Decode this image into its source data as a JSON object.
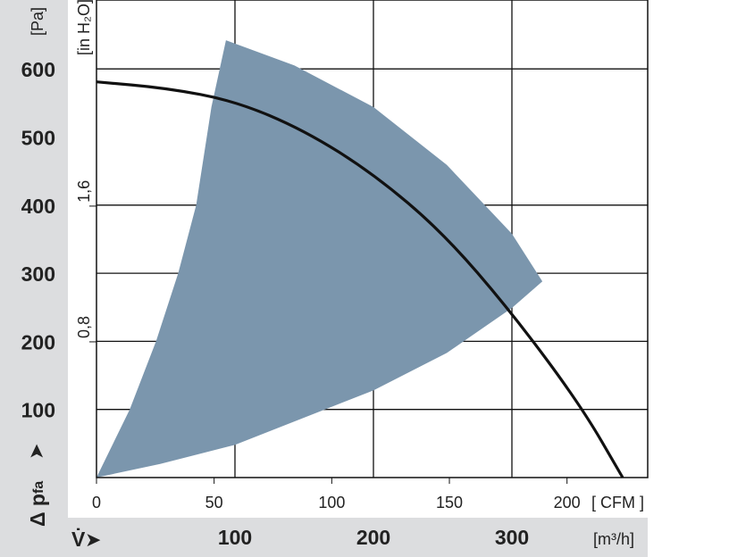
{
  "chart_data": {
    "type": "line",
    "y_unit_left": "[Pa]",
    "y_unit_inner": "[in H₂O]",
    "y_symbol": "Δ p",
    "y_symbol_sub": "fa",
    "x_symbol": "V̇",
    "x_unit_top": "[ CFM ]",
    "x_unit_bottom": "[m³/h]",
    "y_ticks_pa": [
      "100",
      "200",
      "300",
      "400",
      "500",
      "600"
    ],
    "y_ticks_inh2o": [
      "0,8",
      "1,6"
    ],
    "x_ticks_cfm": [
      "0",
      "50",
      "100",
      "150",
      "200"
    ],
    "x_ticks_m3h": [
      "100",
      "200",
      "300"
    ],
    "xlim_m3h": [
      0,
      398
    ],
    "ylim_pa": [
      0,
      700
    ],
    "grid": true,
    "colors": {
      "region": "#7b96ad",
      "curve": "#111111",
      "band": "#dcdddf"
    },
    "series": [
      {
        "type": "line",
        "x": [
          0,
          50,
          100,
          150,
          200,
          250,
          300,
          350,
          380
        ],
        "y": [
          581,
          572,
          553,
          510,
          446,
          360,
          242,
          105,
          0
        ]
      },
      {
        "type": "area",
        "x": [
          0,
          24,
          43,
          59,
          72,
          83,
          93.5,
          143,
          200,
          253,
          300,
          322,
          300,
          253,
          200,
          100,
          46,
          0
        ],
        "y": [
          0,
          100,
          200,
          300,
          400,
          544,
          642,
          605,
          544,
          459,
          358,
          288,
          249,
          183,
          128,
          48,
          20,
          0
        ]
      }
    ]
  }
}
